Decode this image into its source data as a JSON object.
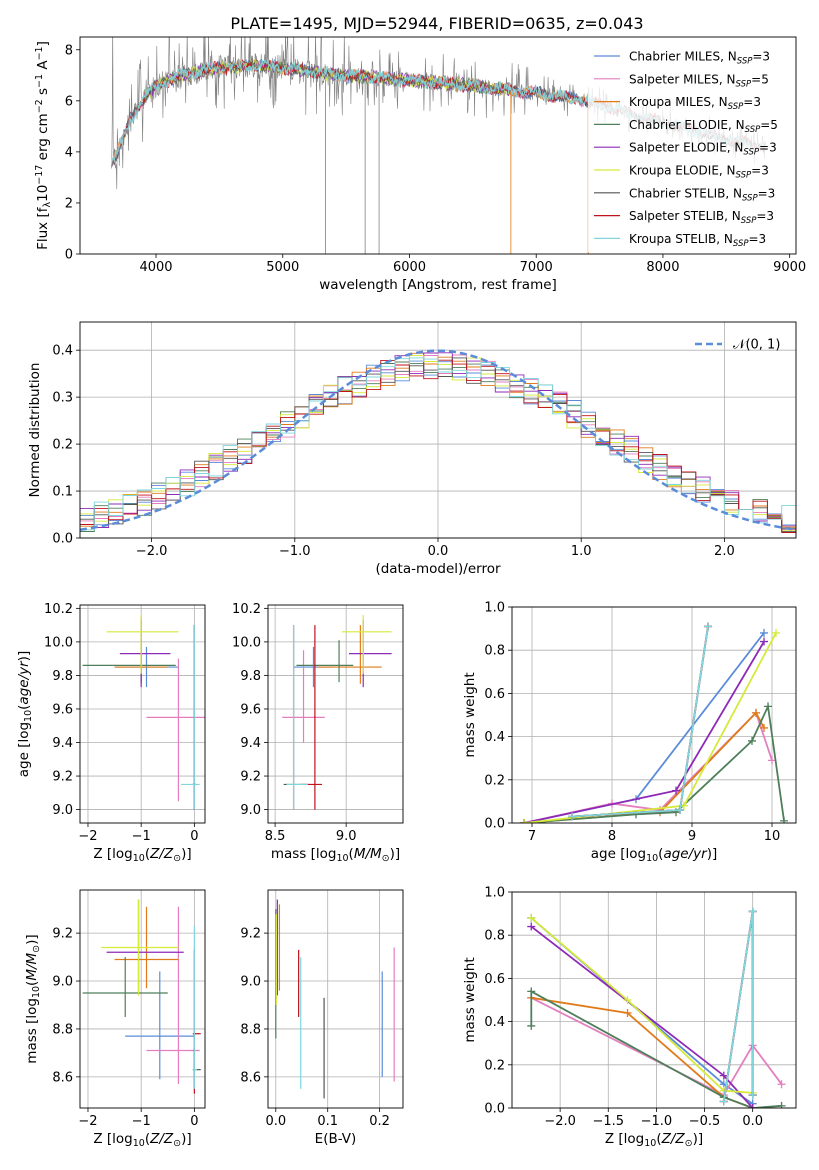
{
  "figure_title": "PLATE=1495, MJD=52944, FIBERID=0635, z=0.043",
  "colors": {
    "Chabrier MILES": "#5b8cd8",
    "Salpeter MILES": "#e37fbf",
    "Kroupa MILES": "#e07b1a",
    "Chabrier ELODIE": "#4f7f5a",
    "Salpeter ELODIE": "#8e2ab8",
    "Kroupa ELODIE": "#d6ea3a",
    "Chabrier STELIB": "#555555",
    "Salpeter STELIB": "#c0121b",
    "Kroupa STELIB": "#7fd6dc",
    "data": "#808080",
    "gaussian": "#5b8cd8"
  },
  "chart_data": [
    {
      "id": "spectrum",
      "type": "line",
      "xlabel": "wavelength [Angstrom, rest frame]",
      "ylabel": "Flux [f_λ10^-17 erg cm^-2 s^-1 A^-1]",
      "xlim": [
        3400,
        9050
      ],
      "ylim": [
        0,
        8.5
      ],
      "xticks": [
        4000,
        5000,
        6000,
        7000,
        8000,
        9000
      ],
      "yticks": [
        0,
        2,
        4,
        6,
        8
      ],
      "legend_position": "upper right",
      "legend": [
        {
          "name": "Chabrier MILES",
          "nssp": "3"
        },
        {
          "name": "Salpeter MILES",
          "nssp": "5"
        },
        {
          "name": "Kroupa MILES",
          "nssp": "3"
        },
        {
          "name": "Chabrier ELODIE",
          "nssp": "5"
        },
        {
          "name": "Salpeter ELODIE",
          "nssp": "3"
        },
        {
          "name": "Kroupa ELODIE",
          "nssp": "3"
        },
        {
          "name": "Chabrier STELIB",
          "nssp": "3"
        },
        {
          "name": "Salpeter STELIB",
          "nssp": "3"
        },
        {
          "name": "Kroupa STELIB",
          "nssp": "3"
        }
      ],
      "continuum": {
        "x": [
          3650,
          3700,
          3800,
          3900,
          4000,
          4200,
          4500,
          4800,
          5000,
          5300,
          5600,
          6000,
          6500,
          7000,
          7400,
          7800,
          8200,
          8500,
          8800
        ],
        "y": [
          3.6,
          4.0,
          5.3,
          6.1,
          6.6,
          7.0,
          7.3,
          7.4,
          7.3,
          7.1,
          6.95,
          6.8,
          6.6,
          6.3,
          6.0,
          5.4,
          4.9,
          4.5,
          4.2
        ]
      },
      "data_range": [
        3650,
        8810
      ],
      "model_ranges": {
        "MILES": [
          3650,
          7410
        ],
        "ELODIE": [
          3900,
          6800
        ],
        "STELIB": [
          3650,
          8810
        ]
      },
      "deep_drops": [
        5338,
        5650,
        5760,
        6800,
        7410
      ]
    },
    {
      "id": "residuals",
      "type": "histogram",
      "xlabel": "(data-model)/error",
      "ylabel": "Normed distribution",
      "xlim": [
        -2.5,
        2.5
      ],
      "ylim": [
        0,
        0.46
      ],
      "xticks": [
        -2,
        -1,
        0,
        1,
        2
      ],
      "yticks": [
        0.0,
        0.1,
        0.2,
        0.3,
        0.4
      ],
      "legend": "𝒩(0, 1)",
      "bin_width": 0.1,
      "legend_position": "upper right"
    },
    {
      "id": "age_vs_Z",
      "type": "errorbar",
      "xlabel": "Z [log10(Z/Z⊙)]",
      "ylabel": "age [log10(age/yr)]",
      "xlim": [
        -2.15,
        0.2
      ],
      "ylim": [
        8.92,
        10.22
      ],
      "xticks": [
        -2,
        -1,
        0
      ],
      "yticks": [
        9.0,
        9.2,
        9.4,
        9.6,
        9.8,
        10.0,
        10.2
      ],
      "points": [
        {
          "model": "Chabrier MILES",
          "x": -0.9,
          "xerr": [
            0.6,
            0.6
          ],
          "y": 9.85,
          "yerr": [
            0.12,
            0.12
          ]
        },
        {
          "model": "Salpeter MILES",
          "x": -0.3,
          "xerr": [
            0.6,
            0.6
          ],
          "y": 9.55,
          "yerr": [
            0.5,
            0.35
          ]
        },
        {
          "model": "Kroupa MILES",
          "x": -1.0,
          "xerr": [
            0.5,
            0.5
          ],
          "y": 9.85,
          "yerr": [
            0.1,
            0.3
          ]
        },
        {
          "model": "Chabrier ELODIE",
          "x": -1.0,
          "xerr": [
            1.1,
            0.65
          ],
          "y": 9.86,
          "yerr": [
            0.1,
            0.15
          ]
        },
        {
          "model": "Salpeter ELODIE",
          "x": -1.0,
          "xerr": [
            0.4,
            0.55
          ],
          "y": 9.93,
          "yerr": [
            0.2,
            0.2
          ]
        },
        {
          "model": "Kroupa ELODIE",
          "x": -1.0,
          "xerr": [
            0.65,
            0.7
          ],
          "y": 10.06,
          "yerr": [
            0.25,
            0.1
          ]
        },
        {
          "model": "Chabrier STELIB",
          "x": 0.0,
          "xerr": [
            0.03,
            0.03
          ],
          "y": 9.15,
          "yerr": [
            0.15,
            0.95
          ]
        },
        {
          "model": "Salpeter STELIB",
          "x": 0.0,
          "xerr": [
            0.03,
            0.03
          ],
          "y": 9.15,
          "yerr": [
            0.15,
            0.95
          ]
        },
        {
          "model": "Kroupa STELIB",
          "x": 0.0,
          "xerr": [
            0.25,
            0.1
          ],
          "y": 9.15,
          "yerr": [
            0.15,
            0.95
          ]
        }
      ]
    },
    {
      "id": "age_vs_mass",
      "type": "errorbar",
      "xlabel": "mass [log10(M/M⊙)]",
      "ylabel": "",
      "xlim": [
        8.45,
        9.4
      ],
      "ylim": [
        8.92,
        10.22
      ],
      "xticks": [
        8.5,
        9.0
      ],
      "yticks": [
        9.0,
        9.2,
        9.4,
        9.6,
        9.8,
        10.0,
        10.2
      ],
      "points": [
        {
          "model": "Chabrier MILES",
          "x": 8.77,
          "xerr": [
            0.14,
            0.14
          ],
          "y": 9.85,
          "yerr": [
            0.12,
            0.12
          ]
        },
        {
          "model": "Salpeter MILES",
          "x": 8.7,
          "xerr": [
            0.15,
            0.15
          ],
          "y": 9.55,
          "yerr": [
            0.15,
            0.4
          ]
        },
        {
          "model": "Kroupa MILES",
          "x": 9.1,
          "xerr": [
            0.3,
            0.15
          ],
          "y": 9.85,
          "yerr": [
            0.1,
            0.25
          ]
        },
        {
          "model": "Chabrier ELODIE",
          "x": 8.95,
          "xerr": [
            0.3,
            0.1
          ],
          "y": 9.86,
          "yerr": [
            0.1,
            0.15
          ]
        },
        {
          "model": "Salpeter ELODIE",
          "x": 9.12,
          "xerr": [
            0.1,
            0.2
          ],
          "y": 9.93,
          "yerr": [
            0.2,
            0.2
          ]
        },
        {
          "model": "Kroupa ELODIE",
          "x": 9.12,
          "xerr": [
            0.15,
            0.2
          ],
          "y": 10.06,
          "yerr": [
            0.25,
            0.1
          ]
        },
        {
          "model": "Chabrier STELIB",
          "x": 8.63,
          "xerr": [
            0.07,
            0.1
          ],
          "y": 9.15,
          "yerr": [
            0.15,
            0.95
          ]
        },
        {
          "model": "Salpeter STELIB",
          "x": 8.78,
          "xerr": [
            0.1,
            0.05
          ],
          "y": 9.15,
          "yerr": [
            0.15,
            0.95
          ]
        },
        {
          "model": "Kroupa STELIB",
          "x": 8.63,
          "xerr": [
            0.05,
            0.1
          ],
          "y": 9.15,
          "yerr": [
            0.15,
            0.95
          ]
        }
      ]
    },
    {
      "id": "massweight_vs_age",
      "type": "line",
      "xlabel": "age [log10(age/yr)]",
      "ylabel": "mass weight",
      "xlim": [
        6.75,
        10.3
      ],
      "ylim": [
        0,
        1.0
      ],
      "xticks": [
        7,
        8,
        9,
        10
      ],
      "yticks": [
        0.0,
        0.2,
        0.4,
        0.6,
        0.8,
        1.0
      ],
      "series": [
        {
          "model": "Chabrier MILES",
          "x": [
            6.9,
            8.3,
            9.9
          ],
          "y": [
            0.0,
            0.11,
            0.88
          ]
        },
        {
          "model": "Salpeter MILES",
          "x": [
            6.9,
            8.0,
            8.6,
            9.8,
            10.0
          ],
          "y": [
            0.0,
            0.09,
            0.06,
            0.51,
            0.29
          ]
        },
        {
          "model": "Kroupa MILES",
          "x": [
            6.9,
            8.6,
            9.8,
            9.9
          ],
          "y": [
            0.0,
            0.05,
            0.51,
            0.44
          ]
        },
        {
          "model": "Chabrier ELODIE",
          "x": [
            6.9,
            8.3,
            8.8,
            9.75,
            9.95,
            10.15
          ],
          "y": [
            0.0,
            0.04,
            0.05,
            0.38,
            0.54,
            0.01
          ]
        },
        {
          "model": "Salpeter ELODIE",
          "x": [
            6.9,
            8.8,
            9.9
          ],
          "y": [
            0.0,
            0.15,
            0.84
          ]
        },
        {
          "model": "Kroupa ELODIE",
          "x": [
            6.9,
            8.9,
            10.05
          ],
          "y": [
            0.0,
            0.08,
            0.88
          ]
        },
        {
          "model": "Chabrier STELIB",
          "x": [
            7.5,
            8.85,
            9.2
          ],
          "y": [
            0.03,
            0.06,
            0.91
          ]
        },
        {
          "model": "Salpeter STELIB",
          "x": [
            7.5,
            8.85,
            9.2
          ],
          "y": [
            0.03,
            0.06,
            0.91
          ]
        },
        {
          "model": "Kroupa STELIB",
          "x": [
            7.5,
            8.85,
            9.2
          ],
          "y": [
            0.03,
            0.06,
            0.91
          ]
        }
      ]
    },
    {
      "id": "mass_vs_Z",
      "type": "errorbar",
      "xlabel": "Z [log10(Z/Z⊙)]",
      "ylabel": "mass [log10(M/M⊙)]",
      "xlim": [
        -2.15,
        0.2
      ],
      "ylim": [
        8.47,
        9.38
      ],
      "xticks": [
        -2,
        -1,
        0
      ],
      "yticks": [
        8.6,
        8.8,
        9.0,
        9.2
      ],
      "points": [
        {
          "model": "Chabrier MILES",
          "x": -0.65,
          "xerr": [
            0.65,
            0.65
          ],
          "y": 8.77,
          "yerr": [
            0.18,
            0.27
          ]
        },
        {
          "model": "Salpeter MILES",
          "x": -0.3,
          "xerr": [
            0.6,
            0.4
          ],
          "y": 8.71,
          "yerr": [
            0.14,
            0.6
          ]
        },
        {
          "model": "Kroupa MILES",
          "x": -0.9,
          "xerr": [
            0.6,
            0.6
          ],
          "y": 9.09,
          "yerr": [
            0.12,
            0.22
          ]
        },
        {
          "model": "Chabrier ELODIE",
          "x": -1.3,
          "xerr": [
            0.8,
            0.8
          ],
          "y": 8.95,
          "yerr": [
            0.1,
            0.15
          ]
        },
        {
          "model": "Salpeter ELODIE",
          "x": -1.05,
          "xerr": [
            0.6,
            0.85
          ],
          "y": 9.12,
          "yerr": [
            0.18,
            0.22
          ]
        },
        {
          "model": "Kroupa ELODIE",
          "x": -1.05,
          "xerr": [
            0.7,
            0.75
          ],
          "y": 9.14,
          "yerr": [
            0.2,
            0.2
          ]
        },
        {
          "model": "Chabrier STELIB",
          "x": 0.0,
          "xerr": [
            0.03,
            0.12
          ],
          "y": 8.63,
          "yerr": [
            0.08,
            0.09
          ]
        },
        {
          "model": "Salpeter STELIB",
          "x": 0.0,
          "xerr": [
            0.03,
            0.12
          ],
          "y": 8.78,
          "yerr": [
            0.25,
            0.35
          ]
        },
        {
          "model": "Kroupa STELIB",
          "x": 0.0,
          "xerr": [
            0.03,
            0.05
          ],
          "y": 8.63,
          "yerr": [
            0.08,
            0.6
          ]
        }
      ]
    },
    {
      "id": "mass_vs_ebv",
      "type": "errorbar",
      "xlabel": "E(B-V)",
      "ylabel": "",
      "xlim": [
        -0.015,
        0.245
      ],
      "ylim": [
        8.47,
        9.38
      ],
      "xticks": [
        0.0,
        0.1,
        0.2
      ],
      "yticks": [
        8.6,
        8.8,
        9.0,
        9.2
      ],
      "points": [
        {
          "model": "Chabrier MILES",
          "x": 0.205,
          "y": 8.8,
          "yerr": [
            0.2,
            0.24
          ]
        },
        {
          "model": "Salpeter MILES",
          "x": 0.228,
          "y": 8.8,
          "yerr": [
            0.22,
            0.34
          ]
        },
        {
          "model": "Kroupa MILES",
          "x": 0.007,
          "y": 9.13,
          "yerr": [
            0.17,
            0.19
          ]
        },
        {
          "model": "Chabrier ELODIE",
          "x": 0.0,
          "y": 9.1,
          "yerr": [
            0.34,
            0.2
          ]
        },
        {
          "model": "Salpeter ELODIE",
          "x": 0.003,
          "y": 9.12,
          "yerr": [
            0.18,
            0.22
          ]
        },
        {
          "model": "Kroupa ELODIE",
          "x": 0.001,
          "y": 9.14,
          "yerr": [
            0.24,
            0.14
          ]
        },
        {
          "model": "Chabrier STELIB",
          "x": 0.093,
          "y": 8.63,
          "yerr": [
            0.12,
            0.3
          ]
        },
        {
          "model": "Salpeter STELIB",
          "x": 0.044,
          "y": 9.1,
          "yerr": [
            0.25,
            0.03
          ]
        },
        {
          "model": "Kroupa STELIB",
          "x": 0.048,
          "y": 8.83,
          "yerr": [
            0.28,
            0.27
          ]
        }
      ]
    },
    {
      "id": "massweight_vs_Z",
      "type": "line",
      "xlabel": "Z [log10(Z/Z⊙)]",
      "ylabel": "mass weight",
      "xlim": [
        -2.5,
        0.45
      ],
      "ylim": [
        0,
        1.0
      ],
      "xticks": [
        -2.0,
        -1.5,
        -1.0,
        -0.5,
        0.0
      ],
      "yticks": [
        0.0,
        0.2,
        0.4,
        0.6,
        0.8,
        1.0
      ],
      "series": [
        {
          "model": "Chabrier MILES",
          "x": [
            -2.3,
            -0.3,
            0.0
          ],
          "y": [
            0.88,
            0.11,
            0.02
          ]
        },
        {
          "model": "Salpeter MILES",
          "x": [
            -2.3,
            -0.3,
            0.0,
            0.3
          ],
          "y": [
            0.51,
            0.06,
            0.29,
            0.11
          ]
        },
        {
          "model": "Kroupa MILES",
          "x": [
            -2.3,
            -1.3,
            -0.3,
            0.0
          ],
          "y": [
            0.51,
            0.44,
            0.05,
            0.0
          ]
        },
        {
          "model": "Chabrier ELODIE",
          "x": [
            -2.3,
            -2.3,
            -0.3,
            0.0,
            0.3
          ],
          "y": [
            0.38,
            0.54,
            0.05,
            0.0,
            0.01
          ]
        },
        {
          "model": "Salpeter ELODIE",
          "x": [
            -2.3,
            -0.3,
            0.0
          ],
          "y": [
            0.84,
            0.15,
            0.0
          ]
        },
        {
          "model": "Kroupa ELODIE",
          "x": [
            -2.3,
            -1.3,
            -0.3,
            0.0
          ],
          "y": [
            0.88,
            0.5,
            0.08,
            0.07
          ]
        },
        {
          "model": "Chabrier STELIB",
          "x": [
            -0.3,
            0.0,
            0.0
          ],
          "y": [
            0.03,
            0.91,
            0.06
          ]
        },
        {
          "model": "Salpeter STELIB",
          "x": [
            -0.3,
            0.0,
            0.0
          ],
          "y": [
            0.03,
            0.91,
            0.06
          ]
        },
        {
          "model": "Kroupa STELIB",
          "x": [
            -0.3,
            0.0,
            0.0
          ],
          "y": [
            0.03,
            0.91,
            0.06
          ]
        }
      ]
    }
  ]
}
